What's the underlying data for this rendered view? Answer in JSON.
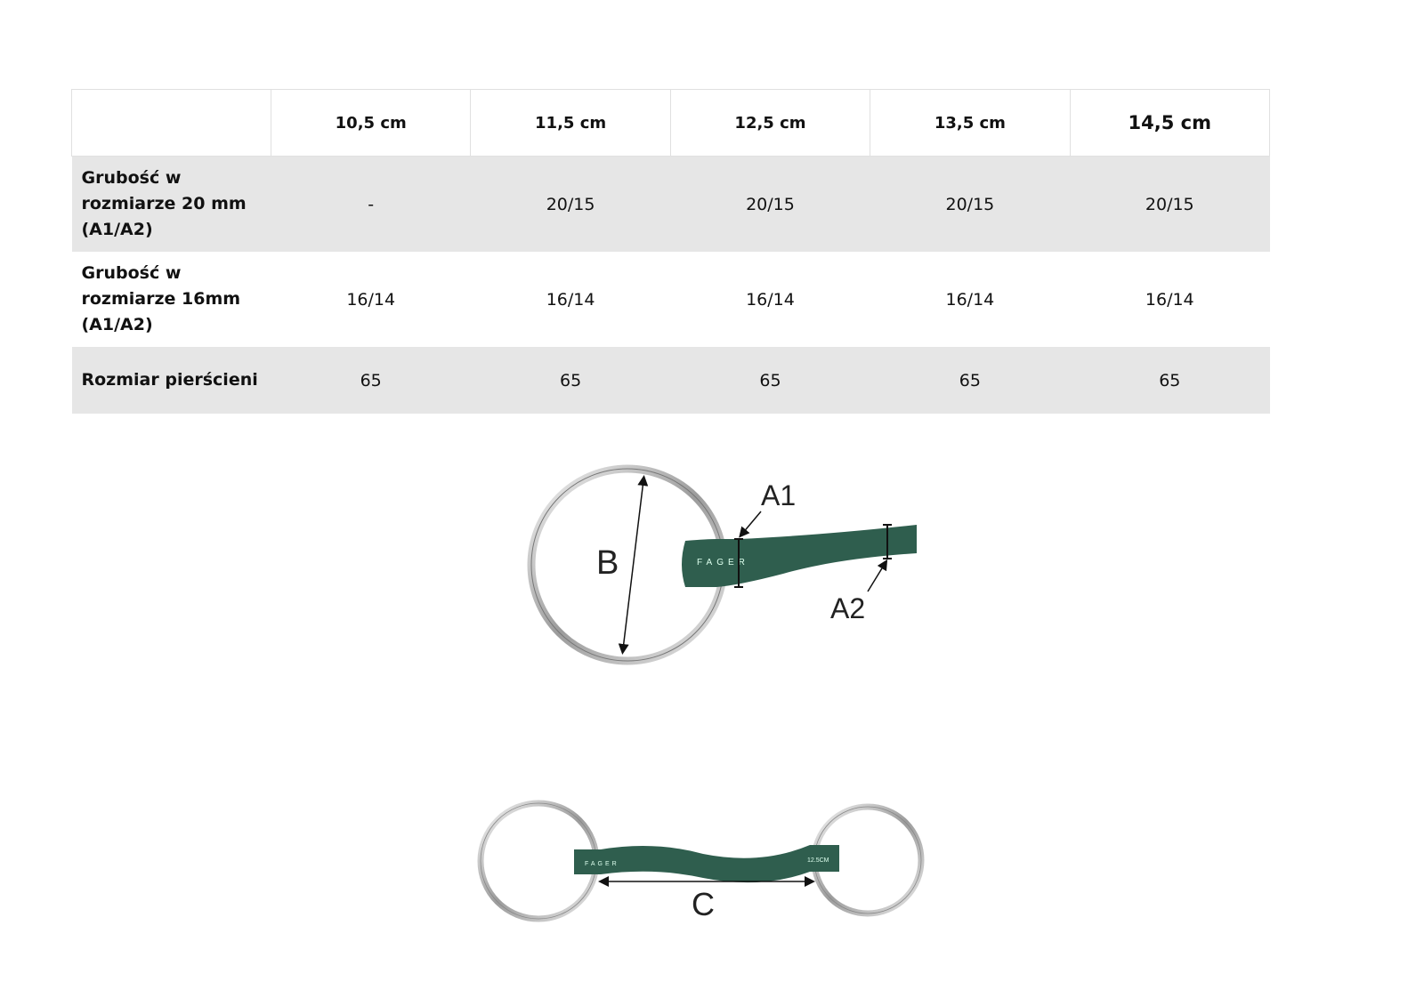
{
  "table": {
    "columns": [
      "",
      "10,5 cm",
      "11,5 cm",
      "12,5 cm",
      "13,5 cm",
      "14,5 cm"
    ],
    "rows": [
      {
        "label": "Grubość w rozmiarze 20 mm (A1/A2)",
        "values": [
          "-",
          "20/15",
          "20/15",
          "20/15",
          "20/15"
        ]
      },
      {
        "label": "Grubość w rozmiarze 16mm (A1/A2)",
        "values": [
          "16/14",
          "16/14",
          "16/14",
          "16/14",
          "16/14"
        ]
      },
      {
        "label": "Rozmiar pierścieni",
        "values": [
          "65",
          "65",
          "65",
          "65",
          "65"
        ]
      }
    ]
  },
  "diagram_top": {
    "label_b": "B",
    "label_a1": "A1",
    "label_a2": "A2",
    "brand": "FAGER"
  },
  "diagram_bottom": {
    "label_c": "C",
    "brand": "FAGER",
    "size_mark": "12.5CM"
  },
  "colors": {
    "bit_green": "#2f5e4e",
    "ring_silver": "#c8c8c8",
    "row_shade": "#e6e6e6"
  }
}
